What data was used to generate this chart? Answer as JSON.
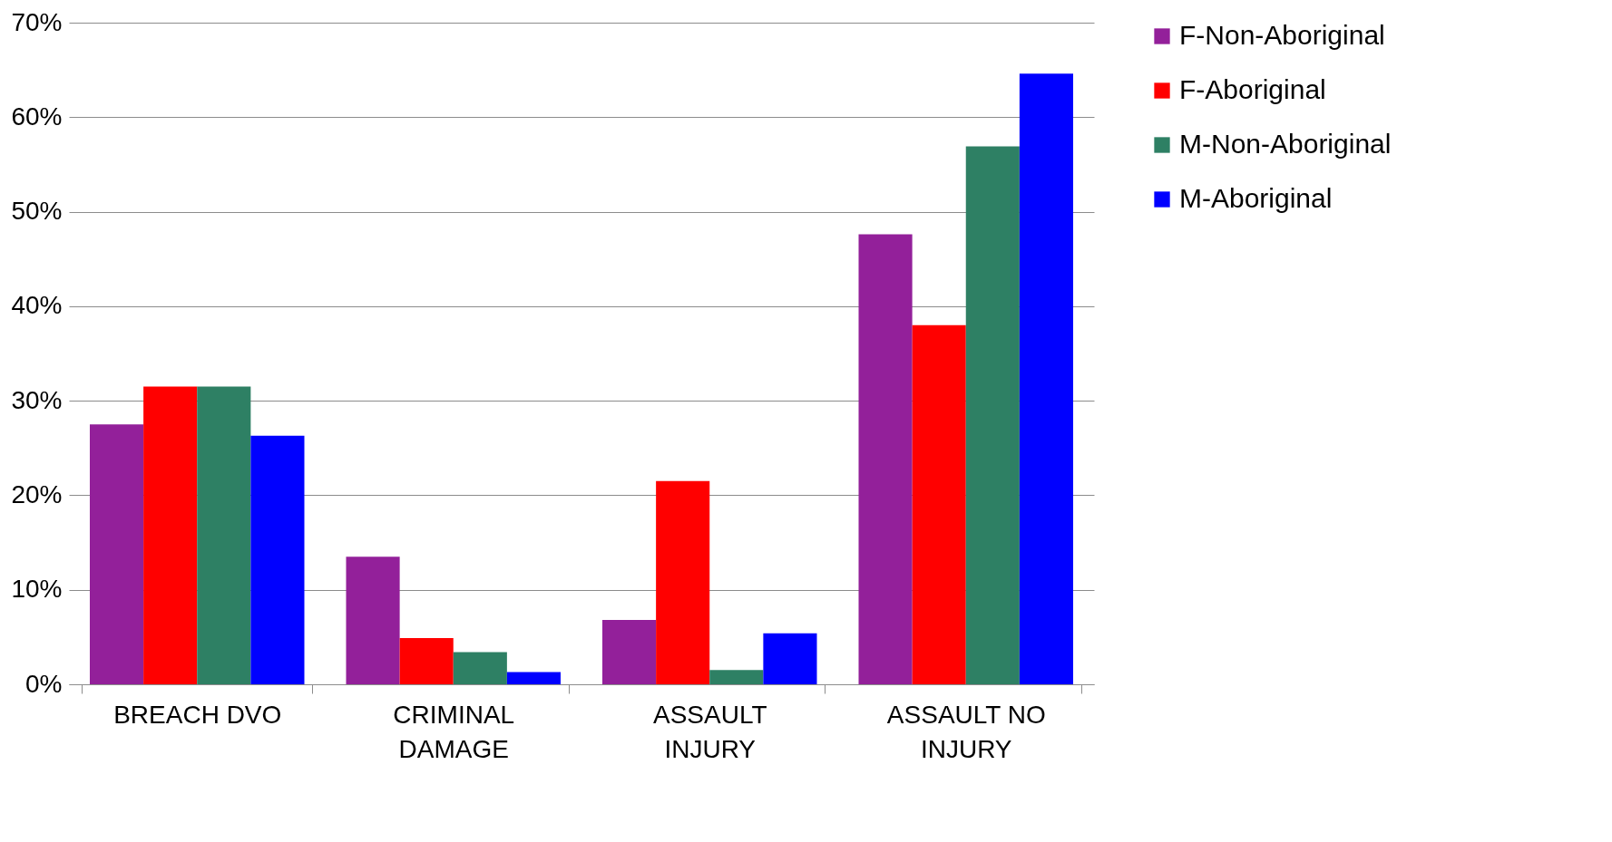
{
  "chart_data": {
    "type": "bar",
    "categories": [
      "BREACH DVO",
      "CRIMINAL DAMAGE",
      "ASSAULT INJURY",
      "ASSAULT NO INJURY"
    ],
    "series": [
      {
        "name": "F-Non-Aboriginal",
        "color": "#93209a",
        "values": [
          27.5,
          13.5,
          6.8,
          47.6
        ]
      },
      {
        "name": "F-Aboriginal",
        "color": "#ff0000",
        "values": [
          31.5,
          4.9,
          21.5,
          38.0
        ]
      },
      {
        "name": "M-Non-Aboriginal",
        "color": "#2e8064",
        "values": [
          31.5,
          3.4,
          1.5,
          56.9
        ]
      },
      {
        "name": "M-Aboriginal",
        "color": "#0000ff",
        "values": [
          26.3,
          1.3,
          5.4,
          64.6
        ]
      }
    ],
    "ylim": [
      0,
      70
    ],
    "yticks": [
      {
        "value": 0,
        "label": "0%"
      },
      {
        "value": 10,
        "label": "10%"
      },
      {
        "value": 20,
        "label": "20%"
      },
      {
        "value": 30,
        "label": "30%"
      },
      {
        "value": 40,
        "label": "40%"
      },
      {
        "value": 50,
        "label": "50%"
      },
      {
        "value": 60,
        "label": "60%"
      },
      {
        "value": 70,
        "label": "70%"
      }
    ],
    "grid": "y",
    "legend": "right"
  }
}
